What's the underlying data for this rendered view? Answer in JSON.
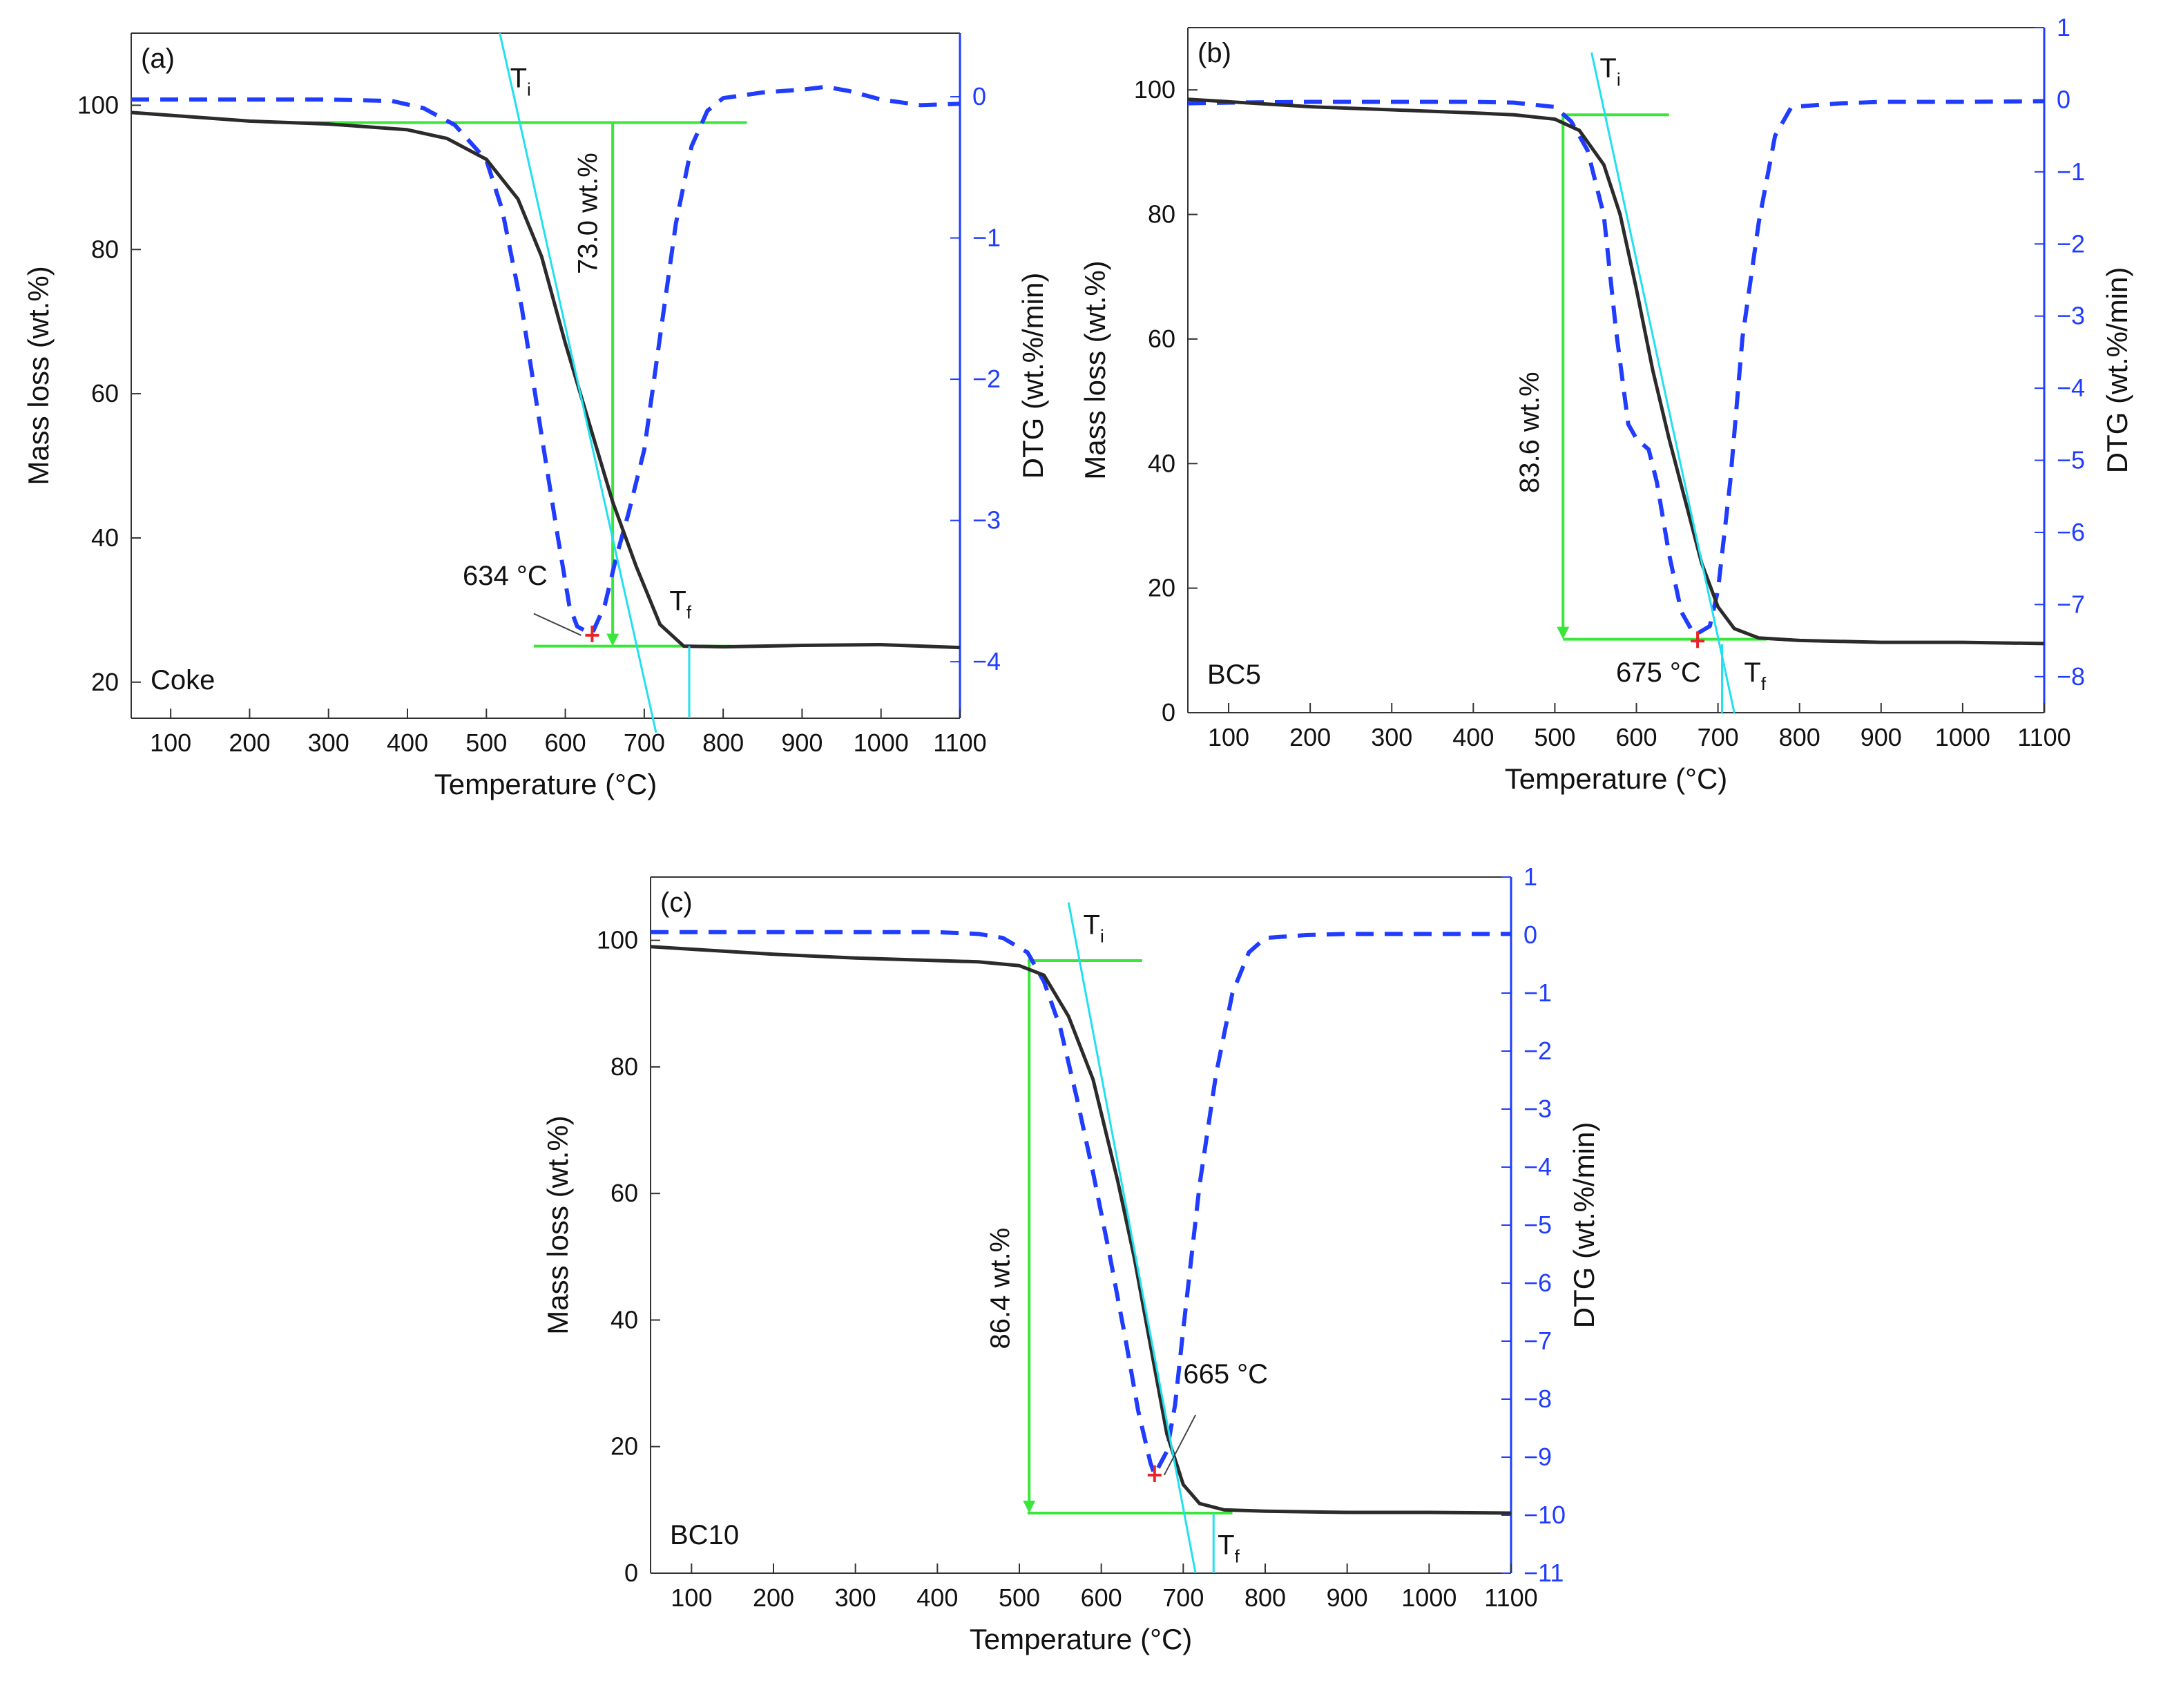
{
  "chart_data": [
    {
      "type": "line",
      "panel_label": "(a)",
      "sample_label": "Coke",
      "xlabel": "Temperature (°C)",
      "ylabel_left": "Mass loss (wt.%)",
      "ylabel_right": "DTG (wt.%/min)",
      "xlim": [
        50,
        1100
      ],
      "ylim_left": [
        15,
        110
      ],
      "ylim_right": [
        -4.4,
        0.45
      ],
      "x_ticks": [
        100,
        200,
        300,
        400,
        500,
        600,
        700,
        800,
        900,
        1000,
        1100
      ],
      "y_ticks_left": [
        20,
        40,
        60,
        80,
        100
      ],
      "y_ticks_right": [
        0,
        -1,
        -2,
        -3,
        -4
      ],
      "mass_loss": {
        "name": "Mass loss",
        "color": "#2b2b2b",
        "x": [
          50,
          100,
          200,
          300,
          400,
          450,
          500,
          540,
          570,
          600,
          630,
          660,
          690,
          720,
          750,
          800,
          900,
          1000,
          1100
        ],
        "y": [
          99,
          98.6,
          97.8,
          97.4,
          96.6,
          95.4,
          92.5,
          87,
          79,
          67,
          56,
          45,
          36,
          28,
          25,
          24.9,
          25.1,
          25.2,
          24.8
        ]
      },
      "dtg": {
        "name": "DTG",
        "color": "#1f3cff",
        "x": [
          50,
          100,
          200,
          300,
          380,
          420,
          460,
          500,
          520,
          545,
          570,
          590,
          605,
          615,
          625,
          634,
          650,
          665,
          680,
          700,
          720,
          740,
          760,
          780,
          800,
          850,
          900,
          930,
          960,
          1000,
          1050,
          1100
        ],
        "y": [
          -0.02,
          -0.02,
          -0.02,
          -0.02,
          -0.03,
          -0.08,
          -0.2,
          -0.45,
          -0.8,
          -1.5,
          -2.4,
          -3.1,
          -3.6,
          -3.75,
          -3.78,
          -3.8,
          -3.6,
          -3.25,
          -2.95,
          -2.5,
          -1.7,
          -0.9,
          -0.35,
          -0.1,
          -0.01,
          0.03,
          0.05,
          0.07,
          0.04,
          -0.02,
          -0.06,
          -0.05
        ]
      },
      "annotations": {
        "peak_label": "634 °C",
        "peak_x": 634,
        "mass_loss_label": "73.0 wt.%",
        "ti_label": "T",
        "ti_sub": "i",
        "tf_label": "T",
        "tf_sub": "f"
      }
    },
    {
      "type": "line",
      "panel_label": "(b)",
      "sample_label": "BC5",
      "xlabel": "Temperature (°C)",
      "ylabel_left": "Mass loss (wt.%)",
      "ylabel_right": "DTG (wt.%/min)",
      "xlim": [
        50,
        1100
      ],
      "ylim_left": [
        0,
        110
      ],
      "ylim_right": [
        -8.5,
        1.0
      ],
      "x_ticks": [
        100,
        200,
        300,
        400,
        500,
        600,
        700,
        800,
        900,
        1000,
        1100
      ],
      "y_ticks_left": [
        0,
        20,
        40,
        60,
        80,
        100
      ],
      "y_ticks_right": [
        1,
        0,
        -1,
        -2,
        -3,
        -4,
        -5,
        -6,
        -7,
        -8
      ],
      "mass_loss": {
        "name": "Mass loss",
        "color": "#2b2b2b",
        "x": [
          50,
          100,
          200,
          300,
          400,
          450,
          500,
          530,
          560,
          580,
          600,
          620,
          640,
          660,
          680,
          700,
          720,
          750,
          800,
          900,
          1000,
          1100
        ],
        "y": [
          98.5,
          98.1,
          97.3,
          96.8,
          96.3,
          96,
          95.3,
          93.5,
          88,
          80,
          68,
          55,
          44,
          34,
          24,
          17,
          13.5,
          12,
          11.6,
          11.3,
          11.3,
          11.1
        ]
      },
      "dtg": {
        "name": "DTG",
        "color": "#1f3cff",
        "x": [
          50,
          100,
          200,
          300,
          400,
          450,
          500,
          520,
          540,
          560,
          575,
          590,
          600,
          615,
          625,
          640,
          655,
          670,
          675,
          690,
          700,
          715,
          730,
          750,
          770,
          790,
          850,
          900,
          1000,
          1100
        ],
        "y": [
          -0.05,
          -0.04,
          -0.03,
          -0.03,
          -0.03,
          -0.04,
          -0.1,
          -0.3,
          -0.7,
          -1.6,
          -3.2,
          -4.5,
          -4.7,
          -4.85,
          -5.3,
          -6.3,
          -7.1,
          -7.4,
          -7.4,
          -7.3,
          -6.8,
          -5.3,
          -3.3,
          -1.7,
          -0.5,
          -0.1,
          -0.05,
          -0.03,
          -0.03,
          -0.02
        ]
      },
      "annotations": {
        "peak_label": "675 °C",
        "peak_x": 675,
        "mass_loss_label": "83.6 wt.%",
        "ti_label": "T",
        "ti_sub": "i",
        "tf_label": "T",
        "tf_sub": "f"
      }
    },
    {
      "type": "line",
      "panel_label": "(c)",
      "sample_label": "BC10",
      "xlabel": "Temperature (°C)",
      "ylabel_left": "Mass loss (wt.%)",
      "ylabel_right": "DTG (wt.%/min)",
      "xlim": [
        50,
        1100
      ],
      "ylim_left": [
        0,
        110
      ],
      "ylim_right": [
        -11,
        1.0
      ],
      "x_ticks": [
        100,
        200,
        300,
        400,
        500,
        600,
        700,
        800,
        900,
        1000,
        1100
      ],
      "y_ticks_left": [
        0,
        20,
        40,
        60,
        80,
        100
      ],
      "y_ticks_right": [
        1,
        0,
        -1,
        -2,
        -3,
        -4,
        -5,
        -6,
        -7,
        -8,
        -9,
        -10,
        -11
      ],
      "mass_loss": {
        "name": "Mass loss",
        "color": "#2b2b2b",
        "x": [
          50,
          100,
          200,
          300,
          400,
          450,
          500,
          530,
          560,
          590,
          620,
          640,
          660,
          680,
          700,
          720,
          750,
          800,
          900,
          1000,
          1100
        ],
        "y": [
          99,
          98.6,
          97.8,
          97.2,
          96.8,
          96.6,
          96,
          94.5,
          88,
          78,
          62,
          50,
          36,
          22,
          14,
          11,
          10,
          9.8,
          9.6,
          9.6,
          9.5
        ]
      },
      "dtg": {
        "name": "DTG",
        "color": "#1f3cff",
        "x": [
          50,
          100,
          200,
          300,
          400,
          450,
          480,
          510,
          530,
          550,
          570,
          590,
          610,
          630,
          645,
          660,
          665,
          680,
          690,
          700,
          720,
          740,
          760,
          780,
          800,
          850,
          900,
          1000,
          1100
        ],
        "y": [
          0.05,
          0.05,
          0.05,
          0.05,
          0.05,
          0.02,
          -0.05,
          -0.3,
          -0.8,
          -1.6,
          -2.8,
          -4.1,
          -5.5,
          -7.0,
          -8.2,
          -9.1,
          -9.3,
          -8.9,
          -8.1,
          -6.8,
          -4.3,
          -2.4,
          -1.0,
          -0.3,
          -0.05,
          0.0,
          0.02,
          0.02,
          0.02
        ]
      },
      "annotations": {
        "peak_label": "665 °C",
        "peak_x": 665,
        "mass_loss_label": "86.4 wt.%",
        "ti_label": "T",
        "ti_sub": "i",
        "tf_label": "T",
        "tf_sub": "f"
      }
    }
  ],
  "colors": {
    "mass_curve": "#2b2b2b",
    "dtg_curve": "#1f3cff",
    "tangent": "#22e0f0",
    "construction": "#39e639",
    "peak_marker": "#e8262a",
    "right_axis": "#1f3cff"
  }
}
